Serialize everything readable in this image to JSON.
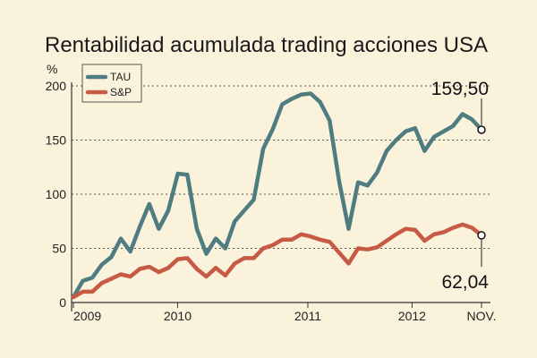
{
  "chart_data": {
    "type": "line",
    "title": "Rentabilidad acumulada trading acciones USA",
    "ylabel": "%",
    "ylim": [
      0,
      200
    ],
    "yticks": [
      0,
      50,
      100,
      150,
      200
    ],
    "xlim": [
      0,
      47
    ],
    "xticks": [
      {
        "label": "2009",
        "x": 0
      },
      {
        "label": "2010",
        "x": 12
      },
      {
        "label": "2011",
        "x": 27
      },
      {
        "label": "2012",
        "x": 39
      },
      {
        "label": "NOV.",
        "x": 47
      }
    ],
    "grid": true,
    "legend_position": "top-left",
    "series": [
      {
        "name": "TAU",
        "color": "#4f7c80",
        "values": [
          5,
          20,
          23,
          35,
          42,
          59,
          47,
          70,
          91,
          68,
          85,
          119,
          118,
          68,
          45,
          59,
          50,
          75,
          85,
          95,
          142,
          160,
          183,
          188,
          192,
          193,
          185,
          168,
          112,
          68,
          111,
          108,
          120,
          140,
          150,
          158,
          161,
          140,
          153,
          158,
          163,
          174,
          169,
          159.5
        ],
        "end_label": "159,50"
      },
      {
        "name": "S&P",
        "color": "#c65a45",
        "values": [
          5,
          10,
          10,
          18,
          22,
          26,
          24,
          31,
          33,
          28,
          32,
          40,
          41,
          31,
          24,
          32,
          25,
          36,
          41,
          41,
          50,
          53,
          58,
          58,
          63,
          61,
          58,
          56,
          46,
          36,
          50,
          49,
          51,
          57,
          63,
          68,
          67,
          57,
          63,
          65,
          69,
          72,
          69,
          62.04
        ],
        "end_label": "62,04"
      }
    ]
  }
}
